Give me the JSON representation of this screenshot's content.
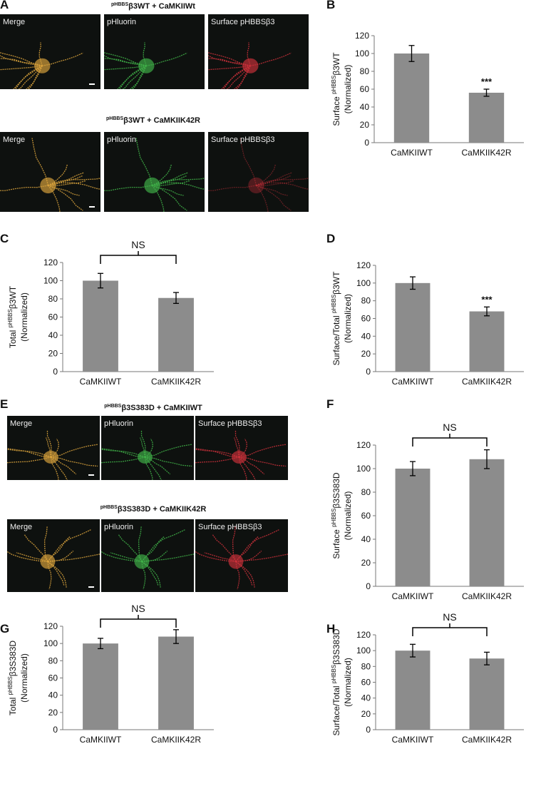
{
  "image_panels": [
    {
      "panel": "A",
      "rows": [
        {
          "title": {
            "sup": "pHBBS",
            "text": "β3WT + CaMKIIWt"
          },
          "images": [
            "Merge",
            "pHluorin",
            "Surface pHBBSβ3"
          ]
        },
        {
          "title": {
            "sup": "pHBBS",
            "text": "β3WT + CaMKIIK42R"
          },
          "images": [
            "Merge",
            "pHluorin",
            "Surface pHBBSβ3"
          ]
        }
      ]
    },
    {
      "panel": "E",
      "rows": [
        {
          "title": {
            "sup": "pHBBS",
            "text": "β3S383D + CaMKIIWT"
          },
          "images": [
            "Merge",
            "pHluorin",
            "Surface pHBBSβ3"
          ]
        },
        {
          "title": {
            "sup": "pHBBS",
            "text": "β3S383D + CaMKIIK42R"
          },
          "images": [
            "Merge",
            "pHluorin",
            "Surface pHBBSβ3"
          ]
        }
      ]
    }
  ],
  "chart_data": [
    {
      "type": "bar",
      "panel": "B",
      "ylabel": {
        "prefix": "Surface ",
        "sup": "pHBBS",
        "suffix": "β3WT",
        "line2": "(Normalized)"
      },
      "categories": [
        "CaMKIIWT",
        "CaMKIIK42R"
      ],
      "values": [
        100,
        56
      ],
      "errors": [
        9,
        4
      ],
      "color": "#8c8c8c",
      "ylim": [
        0,
        120
      ],
      "yticks": [
        0,
        20,
        40,
        60,
        80,
        100,
        120
      ],
      "annotation": "***"
    },
    {
      "type": "bar",
      "panel": "C",
      "ylabel": {
        "prefix": "Total ",
        "sup": "pHBBS",
        "suffix": "β3WT",
        "line2": "(Normalized)"
      },
      "categories": [
        "CaMKIIWT",
        "CaMKIIK42R"
      ],
      "values": [
        100,
        81
      ],
      "errors": [
        8,
        6
      ],
      "color": "#8c8c8c",
      "ylim": [
        0,
        120
      ],
      "yticks": [
        0,
        20,
        40,
        60,
        80,
        100,
        120
      ],
      "bracket": "NS"
    },
    {
      "type": "bar",
      "panel": "D",
      "ylabel": {
        "prefix": "Surface/Total ",
        "sup": "pHBBS",
        "suffix": "β3WT",
        "line2": "(Normalized)"
      },
      "categories": [
        "CaMKIIWT",
        "CaMKIIK42R"
      ],
      "values": [
        100,
        68
      ],
      "errors": [
        7,
        5
      ],
      "color": "#8c8c8c",
      "ylim": [
        0,
        120
      ],
      "yticks": [
        0,
        20,
        40,
        60,
        80,
        100,
        120
      ],
      "annotation": "***"
    },
    {
      "type": "bar",
      "panel": "F",
      "ylabel": {
        "prefix": "Surface ",
        "sup": "pHBBS",
        "suffix": "β3S383D",
        "line2": "(Normalized)"
      },
      "categories": [
        "CaMKIIWT",
        "CaMKIIK42R"
      ],
      "values": [
        100,
        108
      ],
      "errors": [
        6,
        8
      ],
      "color": "#8c8c8c",
      "ylim": [
        0,
        120
      ],
      "yticks": [
        0,
        20,
        40,
        60,
        80,
        100,
        120
      ],
      "bracket": "NS"
    },
    {
      "type": "bar",
      "panel": "G",
      "ylabel": {
        "prefix": "Total ",
        "sup": "pHBBS",
        "suffix": "β3S383D",
        "line2": "(Normalized)"
      },
      "categories": [
        "CaMKIIWT",
        "CaMKIIK42R"
      ],
      "values": [
        100,
        108
      ],
      "errors": [
        6,
        8
      ],
      "color": "#8c8c8c",
      "ylim": [
        0,
        120
      ],
      "yticks": [
        0,
        20,
        40,
        60,
        80,
        100,
        120
      ],
      "bracket": "NS"
    },
    {
      "type": "bar",
      "panel": "H",
      "ylabel": {
        "prefix": "Surface/Total ",
        "sup": "pHBBS",
        "suffix": "β3S383D",
        "line2": "(Normalized)"
      },
      "categories": [
        "CaMKIIWT",
        "CaMKIIK42R"
      ],
      "values": [
        100,
        90
      ],
      "errors": [
        8,
        8
      ],
      "color": "#8c8c8c",
      "ylim": [
        0,
        120
      ],
      "yticks": [
        0,
        20,
        40,
        60,
        80,
        100,
        120
      ],
      "bracket": "NS"
    }
  ]
}
